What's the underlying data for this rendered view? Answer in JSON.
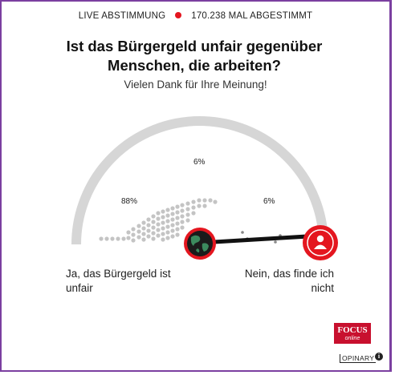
{
  "header": {
    "live_label": "LIVE ABSTIMMUNG",
    "vote_count": "170.238 MAL ABGESTIMMT"
  },
  "question": "Ist das Bürgergeld unfair gegenüber Menschen, die arbeiten?",
  "thanks": "Vielen Dank für Ihre Meinung!",
  "results": {
    "yes_percent": "88%",
    "neutral_percent": "6%",
    "no_percent": "6%"
  },
  "answers": {
    "yes_line1": "Ja, das Bürgergeld ist",
    "yes_line2": "unfair",
    "no_line1": "Nein, das finde ich",
    "no_line2": "nicht"
  },
  "branding": {
    "focus_main": "FOCUS",
    "focus_sub": "online",
    "opinary": "OPINARY",
    "info": "i"
  },
  "colors": {
    "accent": "#e4161f",
    "frame": "#7b3fa0",
    "arc": "#d6d6d6",
    "dots": "#c4c4c4"
  },
  "icons": {
    "selected_answer": "user-icon",
    "own_marker": "globe-icon"
  }
}
